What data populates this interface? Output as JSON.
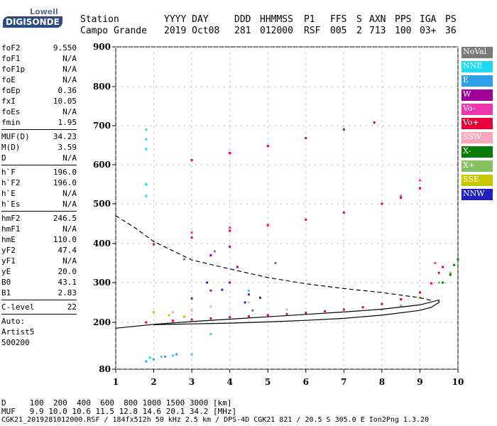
{
  "logo": {
    "top": "Lowell",
    "main": "DIGISONDE"
  },
  "header": {
    "station_label": "Station",
    "station_value": "Campo Grande",
    "yyyy_day_label": "YYYY DAY",
    "yyyy_day_value": "2019 Oct08",
    "ddd_label": "DDD",
    "ddd_value": "281",
    "hhmmss_label": "HHMMSS",
    "hhmmss_value": "012000",
    "p1_label": "P1",
    "p1_value": "RSF",
    "ffs_label": "FFS",
    "ffs_value": "005",
    "s_label": "S",
    "s_value": "2",
    "axn_label": "AXN",
    "axn_value": "713",
    "pps_label": "PPS",
    "pps_value": "100",
    "iga_label": "IGA",
    "iga_value": "03+",
    "ps_label": "PS",
    "ps_value": "36"
  },
  "params": {
    "group1": [
      {
        "name": "foF2",
        "value": "9.550"
      },
      {
        "name": "foF1",
        "value": "N/A"
      },
      {
        "name": "foF1p",
        "value": "N/A"
      },
      {
        "name": "foE",
        "value": "N/A"
      },
      {
        "name": "foEp",
        "value": "0.36"
      },
      {
        "name": "fxI",
        "value": "10.05"
      },
      {
        "name": "foEs",
        "value": "N/A"
      },
      {
        "name": "fmin",
        "value": "1.95"
      }
    ],
    "group2": [
      {
        "name": "MUF(D)",
        "value": "34.23"
      },
      {
        "name": "M(D)",
        "value": "3.59"
      },
      {
        "name": "D",
        "value": "N/A"
      }
    ],
    "group3": [
      {
        "name": "h`F",
        "value": "196.0"
      },
      {
        "name": "h`F2",
        "value": "196.0"
      },
      {
        "name": "h`E",
        "value": "N/A"
      },
      {
        "name": "h`Es",
        "value": "N/A"
      }
    ],
    "group4": [
      {
        "name": "hmF2",
        "value": "246.5"
      },
      {
        "name": "hmF1",
        "value": "N/A"
      },
      {
        "name": "hmE",
        "value": "110.0"
      },
      {
        "name": "yF2",
        "value": "47.4"
      },
      {
        "name": "yF1",
        "value": "N/A"
      },
      {
        "name": "yE",
        "value": "20.0"
      },
      {
        "name": "B0",
        "value": "43.1"
      },
      {
        "name": "B1",
        "value": "2.83"
      }
    ],
    "clevel": {
      "name": "C-level",
      "value": "22"
    },
    "auto": [
      "Auto:",
      "Artist5",
      "500200"
    ]
  },
  "legend": [
    {
      "label": "NoVal",
      "color": "#7a7a7a"
    },
    {
      "label": "NNE",
      "color": "#22d8f0"
    },
    {
      "label": "E",
      "color": "#2f9fe6"
    },
    {
      "label": "W",
      "color": "#a0009a"
    },
    {
      "label": "Vo-",
      "color": "#ee36b0"
    },
    {
      "label": "Vo+",
      "color": "#e8003a"
    },
    {
      "label": "SSW",
      "color": "#f4aaba"
    },
    {
      "label": "X-",
      "color": "#0a7a0a"
    },
    {
      "label": "X+",
      "color": "#86c060"
    },
    {
      "label": "SSE",
      "color": "#c8c800"
    },
    {
      "label": "NNW",
      "color": "#2020c0"
    }
  ],
  "footer": {
    "d_line": "D     100  200  400  600  800 1000 1500 3000 [km]",
    "muf_line": "MUF   9.9 10.0 10.6 11.5 12.8 14.6 20.1 34.2 [MHz]",
    "file_line": "CGK21_2019281012000.RSF / 184fx512h 50 kHz 2.5 km / DPS-4D CGK21 821 / 20.5 S 305.0 E Ion2Png 1.3.20"
  },
  "chart_data": {
    "type": "scatter",
    "xlim": [
      1,
      10
    ],
    "ylim": [
      80,
      900
    ],
    "x_ticks": [
      1,
      2,
      3,
      4,
      5,
      6,
      7,
      8,
      9,
      10
    ],
    "y_ticks": [
      80,
      200,
      300,
      400,
      500,
      600,
      700,
      800,
      900
    ],
    "y_scale": "nonlinear",
    "grid": true,
    "series": [
      {
        "name": "Vo+",
        "points": [
          [
            1.8,
            200
          ],
          [
            2.5,
            204
          ],
          [
            3.0,
            207
          ],
          [
            3.5,
            210
          ],
          [
            4.0,
            213
          ],
          [
            4.5,
            215
          ],
          [
            5.0,
            218
          ],
          [
            5.5,
            221
          ],
          [
            6.0,
            224
          ],
          [
            6.5,
            228
          ],
          [
            7.0,
            232
          ],
          [
            7.5,
            238
          ],
          [
            8.0,
            246
          ],
          [
            8.5,
            258
          ],
          [
            9.0,
            275
          ],
          [
            9.3,
            298
          ],
          [
            9.5,
            325
          ],
          [
            9.6,
            340
          ],
          [
            2.0,
            398
          ],
          [
            3.0,
            415
          ],
          [
            4.0,
            432
          ],
          [
            5.0,
            446
          ],
          [
            6.0,
            460
          ],
          [
            7.0,
            478
          ],
          [
            8.0,
            500
          ],
          [
            8.5,
            515
          ],
          [
            9.0,
            540
          ],
          [
            3.0,
            612
          ],
          [
            4.0,
            630
          ],
          [
            5.0,
            648
          ],
          [
            6.0,
            668
          ],
          [
            7.0,
            690
          ],
          [
            7.8,
            708
          ]
        ]
      },
      {
        "name": "X+",
        "points": [
          [
            8.0,
            232
          ],
          [
            8.5,
            242
          ],
          [
            9.0,
            262
          ],
          [
            9.5,
            300
          ],
          [
            9.8,
            325
          ]
        ]
      },
      {
        "name": "X-",
        "points": [
          [
            9.6,
            300
          ],
          [
            9.8,
            320
          ],
          [
            9.9,
            345
          ],
          [
            10.0,
            360
          ]
        ]
      },
      {
        "name": "NNE",
        "points": [
          [
            1.8,
            690
          ],
          [
            1.8,
            665
          ],
          [
            1.8,
            640
          ],
          [
            1.8,
            550
          ],
          [
            1.8,
            520
          ],
          [
            1.9,
            110
          ],
          [
            2.2,
            112
          ],
          [
            2.5,
            115
          ],
          [
            3.0,
            118
          ],
          [
            3.5,
            170
          ],
          [
            4.0,
            300
          ],
          [
            4.5,
            280
          ]
        ]
      },
      {
        "name": "E",
        "points": [
          [
            1.8,
            100
          ],
          [
            2.0,
            105
          ],
          [
            2.3,
            112
          ],
          [
            2.6,
            118
          ]
        ]
      },
      {
        "name": "W",
        "points": [
          [
            3.0,
            260
          ],
          [
            3.5,
            280
          ],
          [
            4.0,
            300
          ],
          [
            4.2,
            340
          ],
          [
            4.5,
            270
          ],
          [
            3.5,
            370
          ],
          [
            4.0,
            392
          ]
        ]
      },
      {
        "name": "Vo-",
        "points": [
          [
            9.0,
            560
          ],
          [
            8.5,
            520
          ],
          [
            9.4,
            350
          ],
          [
            3.0,
            428
          ],
          [
            4.0,
            440
          ]
        ]
      },
      {
        "name": "SSW",
        "points": [
          [
            3.5,
            240
          ],
          [
            4.5,
            250
          ],
          [
            5.5,
            232
          ],
          [
            3.0,
            230
          ],
          [
            2.5,
            226
          ]
        ]
      },
      {
        "name": "SSE",
        "points": [
          [
            2.0,
            226
          ],
          [
            2.4,
            218
          ],
          [
            2.8,
            214
          ]
        ]
      },
      {
        "name": "NNW",
        "points": [
          [
            3.4,
            300
          ],
          [
            3.8,
            282
          ],
          [
            4.4,
            250
          ],
          [
            4.8,
            262
          ]
        ]
      },
      {
        "name": "NoVal",
        "points": [
          [
            2.8,
            360
          ],
          [
            3.6,
            380
          ],
          [
            4.6,
            230
          ],
          [
            5.2,
            350
          ]
        ]
      }
    ],
    "profile_lines": {
      "dashed": [
        [
          1,
          470
        ],
        [
          1.5,
          440
        ],
        [
          2,
          405
        ],
        [
          3,
          358
        ],
        [
          4,
          335
        ],
        [
          5,
          313
        ],
        [
          6,
          297
        ],
        [
          7,
          285
        ],
        [
          8,
          275
        ],
        [
          9,
          262
        ],
        [
          9.3,
          255
        ]
      ],
      "solid": [
        [
          1,
          185
        ],
        [
          2,
          195
        ],
        [
          3,
          202
        ],
        [
          4,
          208
        ],
        [
          5,
          214
        ],
        [
          6,
          220
        ],
        [
          7,
          226
        ],
        [
          8,
          233
        ],
        [
          9,
          244
        ],
        [
          9.5,
          256
        ],
        [
          9.5,
          250
        ],
        [
          9.3,
          238
        ],
        [
          9.0,
          230
        ],
        [
          8.0,
          218
        ],
        [
          7.0,
          210
        ],
        [
          6.0,
          205
        ],
        [
          5.0,
          201
        ],
        [
          4.0,
          198
        ],
        [
          3.0,
          196
        ],
        [
          2.0,
          194
        ]
      ]
    }
  }
}
